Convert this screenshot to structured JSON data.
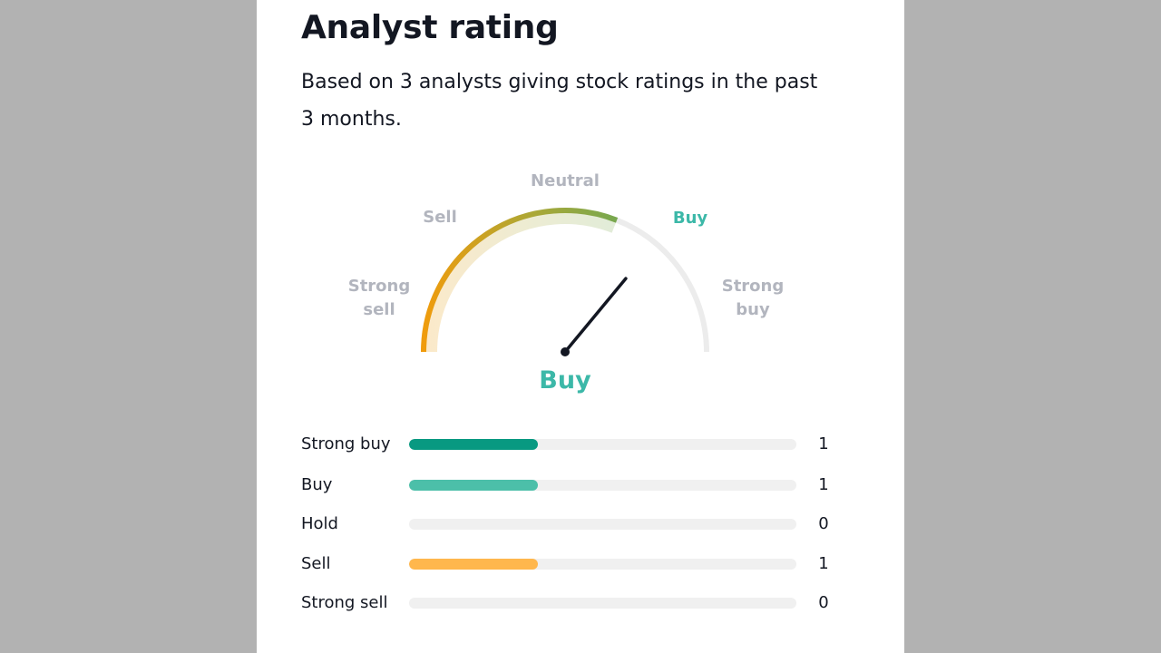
{
  "widget": {
    "title": "Analyst rating",
    "subtitle": "Based on 3 analysts giving stock ratings in the past 3 months."
  },
  "gauge": {
    "labels": {
      "strong_sell": "Strong\nsell",
      "sell": "Sell",
      "neutral": "Neutral",
      "buy": "Buy",
      "strong_buy": "Strong\nbuy"
    },
    "active_label": "buy",
    "verdict": "Buy",
    "needle_value_fraction": 0.72,
    "colors": {
      "gradient_start": "#f29b0b",
      "gradient_mid": "#a8a838",
      "gradient_end": "#5fa75a",
      "track": "#ececec",
      "active_text": "#3cb8a8",
      "inactive_text": "#b2b5be",
      "needle": "#131722"
    }
  },
  "distribution": {
    "max": 3,
    "rows": [
      {
        "label": "Strong buy",
        "count": "1",
        "value": 1,
        "color": "#089981"
      },
      {
        "label": "Buy",
        "count": "1",
        "value": 1,
        "color": "#4cbfa9"
      },
      {
        "label": "Hold",
        "count": "0",
        "value": 0,
        "color": "#b2b5be"
      },
      {
        "label": "Sell",
        "count": "1",
        "value": 1,
        "color": "#ffb74d"
      },
      {
        "label": "Strong sell",
        "count": "0",
        "value": 0,
        "color": "#f77c80"
      }
    ]
  }
}
